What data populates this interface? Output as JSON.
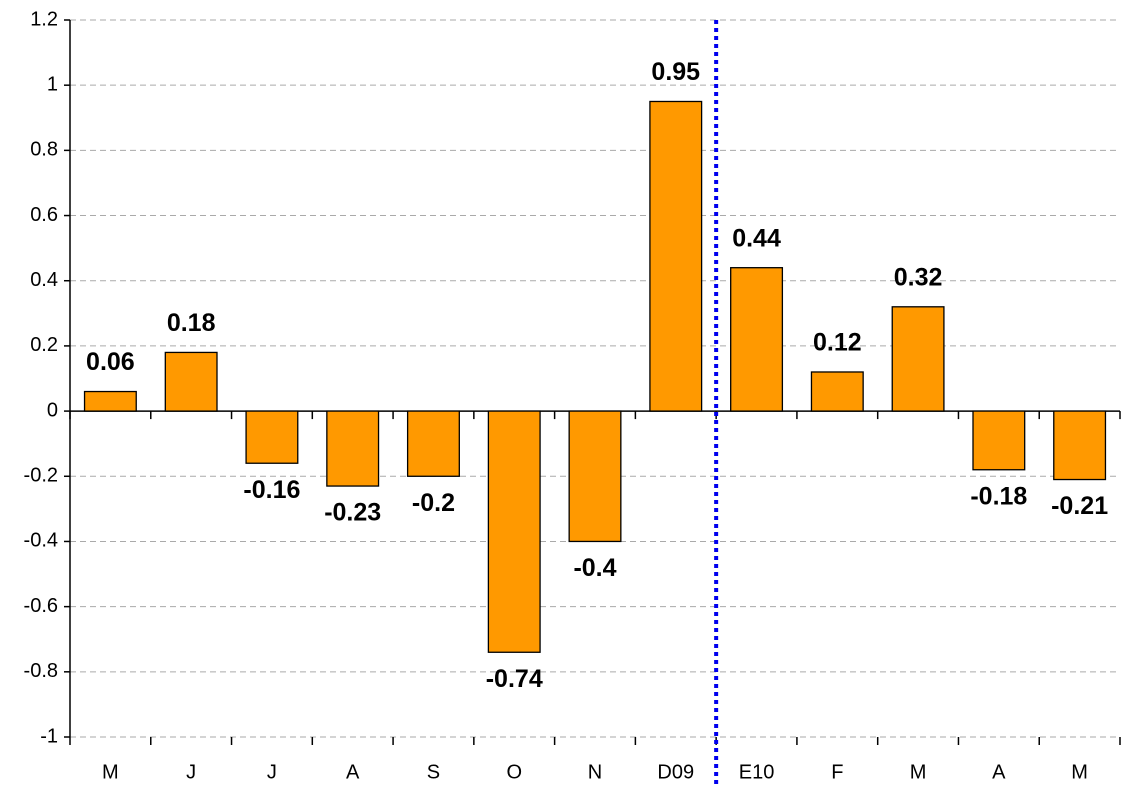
{
  "chart_data": {
    "type": "bar",
    "categories": [
      "M",
      "J",
      "J",
      "A",
      "S",
      "O",
      "N",
      "D09",
      "E10",
      "F",
      "M",
      "A",
      "M"
    ],
    "values": [
      0.06,
      0.18,
      -0.16,
      -0.23,
      -0.2,
      -0.74,
      -0.4,
      0.95,
      0.44,
      0.12,
      0.32,
      -0.18,
      -0.21
    ],
    "color": "#ff9900",
    "ylim": [
      -1,
      1.2
    ],
    "yticks": [
      -1,
      -0.8,
      -0.6,
      -0.4,
      -0.2,
      0,
      0.2,
      0.4,
      0.6,
      0.8,
      1,
      1.2
    ],
    "grid": true
  }
}
